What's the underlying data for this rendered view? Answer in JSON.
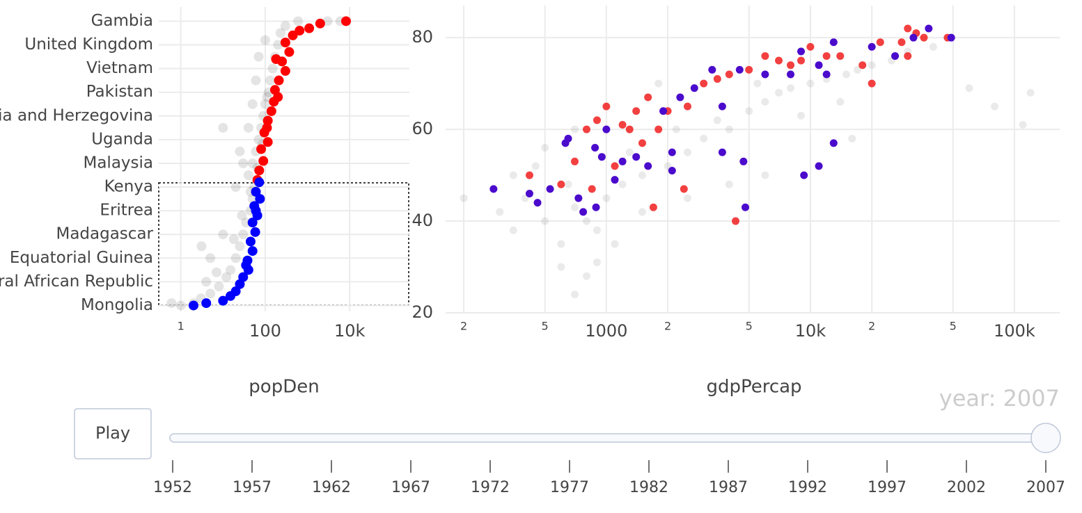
{
  "chart_data": [
    {
      "type": "scatter",
      "x_label": "popDen",
      "log_x": true,
      "grid": true,
      "xlim": [
        0.3,
        260000
      ],
      "xticks": [
        1,
        100,
        {
          "value": 10000,
          "label": "10k"
        }
      ],
      "ylim": [
        -2.5,
        126
      ],
      "yticks": [
        {
          "value": 0,
          "label": "Mongolia"
        },
        {
          "value": 10,
          "label": "Central African Republic"
        },
        {
          "value": 20,
          "label": "Equatorial Guinea"
        },
        {
          "value": 30,
          "label": "Madagascar"
        },
        {
          "value": 40,
          "label": "Eritrea"
        },
        {
          "value": 50,
          "label": "Kenya"
        },
        {
          "value": 60,
          "label": "Malaysia"
        },
        {
          "value": 70,
          "label": "Uganda"
        },
        {
          "value": 80,
          "label": "Bosnia and Herzegovina"
        },
        {
          "value": 90,
          "label": "Pakistan"
        },
        {
          "value": 100,
          "label": "Vietnam"
        },
        {
          "value": 110,
          "label": "United Kingdom"
        },
        {
          "value": 120,
          "label": "Gambia"
        }
      ],
      "series": [
        {
          "color": "rgba(50,50,50,0.13)",
          "x": [
            2,
            1,
            0.6,
            3,
            5,
            8,
            12,
            15,
            20,
            25,
            30,
            35,
            45,
            50,
            55,
            40,
            50,
            60,
            70,
            80,
            90,
            100,
            120,
            130,
            150,
            170,
            200,
            230,
            300,
            600,
            3000,
            6000,
            10,
            5,
            20,
            25,
            30,
            40,
            50,
            60,
            70,
            100,
            3.1,
            10,
            4,
            7,
            18,
            28,
            45,
            65,
            85,
            110
          ],
          "values": [
            1,
            0,
            1,
            3,
            5,
            8,
            12,
            15,
            20,
            25,
            30,
            35,
            40,
            45,
            50,
            55,
            60,
            65,
            70,
            75,
            80,
            85,
            90,
            95,
            100,
            105,
            110,
            115,
            118,
            120,
            120,
            120,
            30,
            20,
            50,
            65,
            60,
            75,
            85,
            95,
            105,
            112,
            25,
            75,
            10,
            14,
            28,
            38,
            48,
            58,
            68,
            88
          ]
        },
        {
          "color": "#ff0000",
          "x": [
            8200,
            2000,
            1100,
            650,
            450,
            300,
            370,
            250,
            300,
            210,
            170,
            200,
            140,
            115,
            95,
            115,
            80,
            90,
            72,
            65,
            180,
            160,
            110
          ],
          "values": [
            120,
            119,
            117,
            116,
            114,
            111,
            107,
            103,
            99,
            95,
            91,
            88,
            82,
            78,
            73,
            69,
            66,
            61,
            57,
            53,
            104,
            86,
            75
          ]
        },
        {
          "color": "#0000ff",
          "x": [
            72,
            60,
            75,
            55,
            65,
            50,
            58,
            45,
            50,
            38,
            40,
            30,
            25,
            20,
            15,
            10,
            4,
            2,
            60,
            35
          ],
          "values": [
            52,
            48,
            45,
            42,
            38,
            35,
            31,
            27,
            23,
            19,
            15,
            12,
            9,
            6,
            4,
            2,
            1,
            0,
            40,
            17
          ]
        }
      ]
    },
    {
      "type": "scatter",
      "x_label": "gdpPercap",
      "log_x": true,
      "grid": true,
      "xlim": [
        163,
        166700
      ],
      "xticks": [
        {
          "value": 200,
          "label": "2"
        },
        {
          "value": 500,
          "label": "5"
        },
        1000,
        {
          "value": 2000,
          "label": "2"
        },
        {
          "value": 5000,
          "label": "5"
        },
        {
          "value": 10000,
          "label": "10k"
        },
        {
          "value": 20000,
          "label": "2"
        },
        {
          "value": 50000,
          "label": "5"
        },
        {
          "value": 100000,
          "label": "100k"
        }
      ],
      "ylim": [
        20,
        87
      ],
      "yticks": [
        20,
        40,
        60,
        80
      ],
      "series": [
        {
          "color": "rgba(140,140,140,0.18)",
          "x": [
            300,
            350,
            400,
            500,
            600,
            700,
            800,
            900,
            1000,
            1200,
            1500,
            2000,
            2500,
            3000,
            4000,
            5000,
            6000,
            7000,
            8000,
            10000,
            12000,
            15000,
            20000,
            25000,
            30000,
            40000,
            60000,
            80000,
            110000,
            120000,
            700,
            500,
            450,
            1500,
            2500,
            4000,
            6000,
            9000,
            14000,
            200,
            800,
            900,
            700,
            16000,
            3500,
            1800,
            600,
            1100,
            2200,
            5500,
            17000,
            350,
            650,
            1300
          ],
          "values": [
            42,
            38,
            45,
            40,
            35,
            43,
            40,
            38,
            45,
            48,
            50,
            52,
            55,
            58,
            60,
            64,
            66,
            68,
            69,
            70,
            71,
            72,
            74,
            75,
            77,
            78,
            69,
            65,
            61,
            68,
            60,
            56,
            52,
            42,
            45,
            48,
            50,
            63,
            66,
            45,
            28,
            31,
            24,
            58,
            62,
            70,
            30,
            35,
            60,
            70,
            73,
            50,
            48,
            55
          ]
        },
        {
          "color": "rgba(240,30,30,0.85)",
          "x": [
            47000,
            30000,
            33000,
            36000,
            28000,
            22000,
            20000,
            18000,
            14000,
            12000,
            10000,
            9000,
            8000,
            7000,
            6000,
            5000,
            4000,
            3500,
            3000,
            2500,
            2000,
            1600,
            1400,
            1200,
            1000,
            900,
            800,
            700,
            600,
            850,
            420,
            1700,
            2400,
            4300,
            1500,
            1800,
            1300,
            1100,
            30000
          ],
          "values": [
            80,
            76,
            81,
            80,
            79,
            79,
            70,
            74,
            76,
            76,
            78,
            75,
            74,
            75,
            76,
            73,
            72,
            71,
            70,
            65,
            64,
            67,
            64,
            61,
            65,
            62,
            60,
            53,
            48,
            47,
            50,
            43,
            47,
            40,
            57,
            60,
            60,
            52,
            82
          ]
        },
        {
          "color": "#4b0bcc",
          "x": [
            49000,
            38000,
            32000,
            26000,
            20000,
            13000,
            12000,
            11000,
            9000,
            8000,
            6000,
            4500,
            3300,
            2700,
            2300,
            3700,
            1900,
            1600,
            1400,
            1000,
            950,
            880,
            650,
            630,
            530,
            420,
            280,
            460,
            730,
            890,
            4700,
            4800,
            9300,
            11000,
            13000,
            3700,
            2100,
            2100,
            1100,
            770,
            1200
          ],
          "values": [
            80,
            82,
            80,
            76,
            78,
            79,
            72,
            74,
            77,
            72,
            72,
            73,
            73,
            69,
            67,
            65,
            64,
            52,
            54,
            60,
            54,
            56,
            58,
            57,
            47,
            46,
            47,
            44,
            45,
            43,
            53,
            43,
            50,
            52,
            57,
            55,
            55,
            51,
            49,
            42,
            53
          ]
        }
      ]
    }
  ],
  "slider": {
    "button": "Play",
    "current_value_label": "year: 2007",
    "value": 2007,
    "steps": [
      1952,
      1957,
      1962,
      1967,
      1972,
      1977,
      1982,
      1987,
      1992,
      1997,
      2002,
      2007
    ]
  }
}
